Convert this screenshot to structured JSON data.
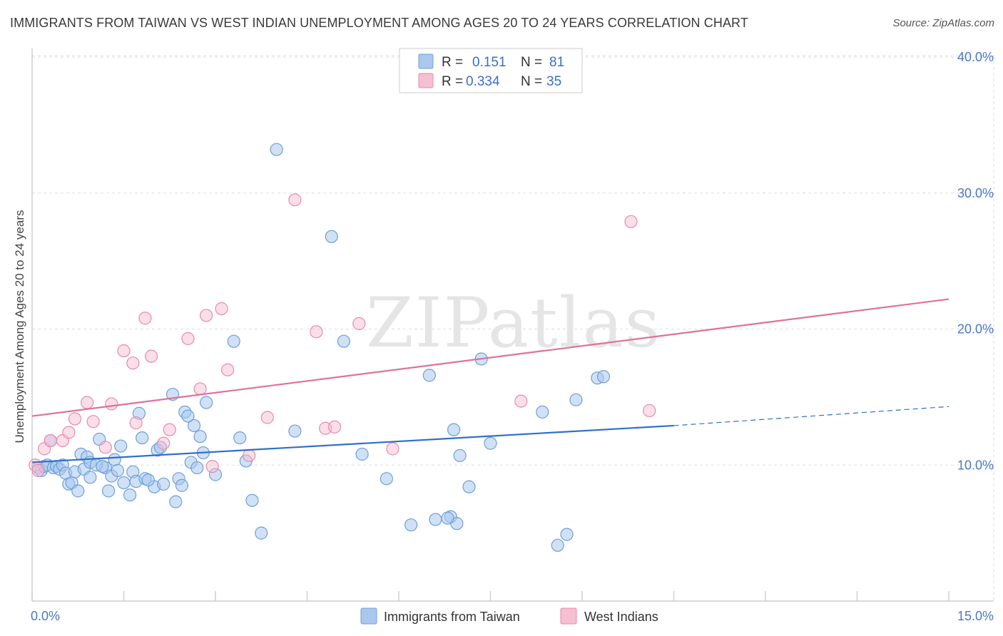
{
  "header": {
    "title": "IMMIGRANTS FROM TAIWAN VS WEST INDIAN UNEMPLOYMENT AMONG AGES 20 TO 24 YEARS CORRELATION CHART",
    "source": "Source: ZipAtlas.com"
  },
  "watermark": "ZIPatlas",
  "colors": {
    "taiwan_fill": "#aac8ee",
    "taiwan_stroke": "#6f9fd8",
    "taiwan_line": "#2f6fcc",
    "westindian_fill": "#f6bfd2",
    "westindian_stroke": "#e88aab",
    "westindian_line": "#e0709a",
    "tick_text": "#4a78c2",
    "grid": "#dddddd"
  },
  "chart_data": {
    "type": "scatter",
    "title": "IMMIGRANTS FROM TAIWAN VS WEST INDIAN UNEMPLOYMENT AMONG AGES 20 TO 24 YEARS CORRELATION CHART",
    "xlabel": "",
    "ylabel": "Unemployment Among Ages 20 to 24 years",
    "xlim": [
      0,
      15
    ],
    "ylim": [
      0,
      40
    ],
    "y_ticks": [
      10,
      20,
      30,
      40
    ],
    "y_tick_labels": [
      "10.0%",
      "20.0%",
      "30.0%",
      "40.0%"
    ],
    "x_tick_labels": [
      "0.0%",
      "15.0%"
    ],
    "legend": [
      {
        "r_label": "R =",
        "r_value": "0.151",
        "n_label": "N =",
        "n_value": "81"
      },
      {
        "r_label": "R =",
        "r_value": "0.334",
        "n_label": "N =",
        "n_value": "35"
      }
    ],
    "series": [
      {
        "name": "Immigrants from Taiwan",
        "r": 0.151,
        "n": 81,
        "trend": {
          "x0": 0,
          "y0": 10.2,
          "x1": 10.5,
          "y1": 12.9,
          "dash_x1": 15,
          "dash_y1": 14.3
        },
        "points": [
          [
            0.1,
            9.8
          ],
          [
            0.15,
            9.6
          ],
          [
            0.2,
            9.9
          ],
          [
            0.25,
            10.0
          ],
          [
            0.3,
            11.8
          ],
          [
            0.35,
            9.8
          ],
          [
            0.4,
            9.9
          ],
          [
            0.45,
            9.7
          ],
          [
            0.5,
            10.0
          ],
          [
            0.55,
            9.4
          ],
          [
            0.6,
            8.6
          ],
          [
            0.65,
            8.7
          ],
          [
            0.7,
            9.5
          ],
          [
            0.75,
            8.1
          ],
          [
            0.8,
            10.8
          ],
          [
            0.85,
            9.7
          ],
          [
            0.9,
            10.6
          ],
          [
            0.95,
            10.2
          ],
          [
            1.1,
            11.9
          ],
          [
            1.2,
            9.8
          ],
          [
            1.25,
            8.1
          ],
          [
            1.3,
            9.2
          ],
          [
            1.35,
            10.4
          ],
          [
            1.4,
            9.6
          ],
          [
            1.45,
            11.4
          ],
          [
            1.5,
            8.7
          ],
          [
            1.6,
            7.8
          ],
          [
            1.65,
            9.5
          ],
          [
            1.7,
            8.8
          ],
          [
            1.75,
            13.8
          ],
          [
            1.8,
            12.0
          ],
          [
            1.85,
            9.0
          ],
          [
            2.0,
            8.4
          ],
          [
            2.05,
            11.1
          ],
          [
            2.1,
            11.3
          ],
          [
            2.15,
            8.6
          ],
          [
            2.3,
            15.2
          ],
          [
            2.35,
            7.3
          ],
          [
            2.4,
            9.0
          ],
          [
            2.45,
            8.5
          ],
          [
            2.6,
            10.2
          ],
          [
            2.65,
            12.9
          ],
          [
            2.7,
            9.8
          ],
          [
            2.8,
            10.9
          ],
          [
            2.85,
            14.6
          ],
          [
            3.0,
            9.3
          ],
          [
            3.3,
            19.1
          ],
          [
            3.4,
            12.0
          ],
          [
            3.5,
            10.3
          ],
          [
            3.6,
            7.4
          ],
          [
            4.0,
            33.2
          ],
          [
            4.3,
            12.5
          ],
          [
            4.9,
            26.8
          ],
          [
            5.1,
            19.1
          ],
          [
            5.4,
            10.8
          ],
          [
            5.8,
            9.0
          ],
          [
            6.2,
            5.6
          ],
          [
            6.5,
            16.6
          ],
          [
            6.6,
            6.0
          ],
          [
            6.85,
            6.2
          ],
          [
            6.9,
            12.6
          ],
          [
            7.0,
            10.7
          ],
          [
            7.15,
            8.4
          ],
          [
            7.35,
            17.8
          ],
          [
            7.5,
            11.6
          ],
          [
            8.35,
            13.9
          ],
          [
            8.6,
            4.1
          ],
          [
            8.75,
            4.9
          ],
          [
            8.9,
            14.8
          ],
          [
            9.25,
            16.4
          ],
          [
            9.35,
            16.5
          ],
          [
            1.05,
            10.0
          ],
          [
            1.15,
            9.9
          ],
          [
            0.95,
            9.1
          ],
          [
            1.9,
            8.9
          ],
          [
            2.5,
            13.9
          ],
          [
            2.55,
            13.6
          ],
          [
            2.75,
            12.1
          ],
          [
            3.75,
            5.0
          ],
          [
            6.95,
            5.7
          ],
          [
            6.8,
            6.1
          ]
        ]
      },
      {
        "name": "West Indians",
        "r": 0.334,
        "n": 35,
        "trend": {
          "x0": 0,
          "y0": 13.6,
          "x1": 15,
          "y1": 22.2
        },
        "points": [
          [
            0.05,
            10.0
          ],
          [
            0.1,
            9.6
          ],
          [
            0.2,
            11.2
          ],
          [
            0.3,
            11.8
          ],
          [
            0.5,
            11.8
          ],
          [
            0.6,
            12.4
          ],
          [
            0.7,
            13.4
          ],
          [
            0.9,
            14.6
          ],
          [
            1.0,
            13.2
          ],
          [
            1.2,
            11.3
          ],
          [
            1.3,
            14.5
          ],
          [
            1.5,
            18.4
          ],
          [
            1.65,
            17.5
          ],
          [
            1.7,
            13.1
          ],
          [
            1.85,
            20.8
          ],
          [
            1.95,
            18.0
          ],
          [
            2.15,
            11.6
          ],
          [
            2.25,
            12.6
          ],
          [
            2.55,
            19.3
          ],
          [
            2.75,
            15.6
          ],
          [
            2.85,
            21.0
          ],
          [
            2.95,
            9.9
          ],
          [
            3.1,
            21.5
          ],
          [
            3.2,
            17.0
          ],
          [
            3.55,
            10.7
          ],
          [
            3.85,
            13.5
          ],
          [
            4.3,
            29.5
          ],
          [
            4.65,
            19.8
          ],
          [
            4.8,
            12.7
          ],
          [
            4.95,
            12.8
          ],
          [
            5.35,
            20.4
          ],
          [
            5.9,
            11.2
          ],
          [
            8.0,
            14.7
          ],
          [
            9.8,
            27.9
          ],
          [
            10.1,
            14.0
          ]
        ]
      }
    ]
  },
  "bottom_legend": {
    "taiwan": "Immigrants from Taiwan",
    "westindian": "West Indians"
  }
}
